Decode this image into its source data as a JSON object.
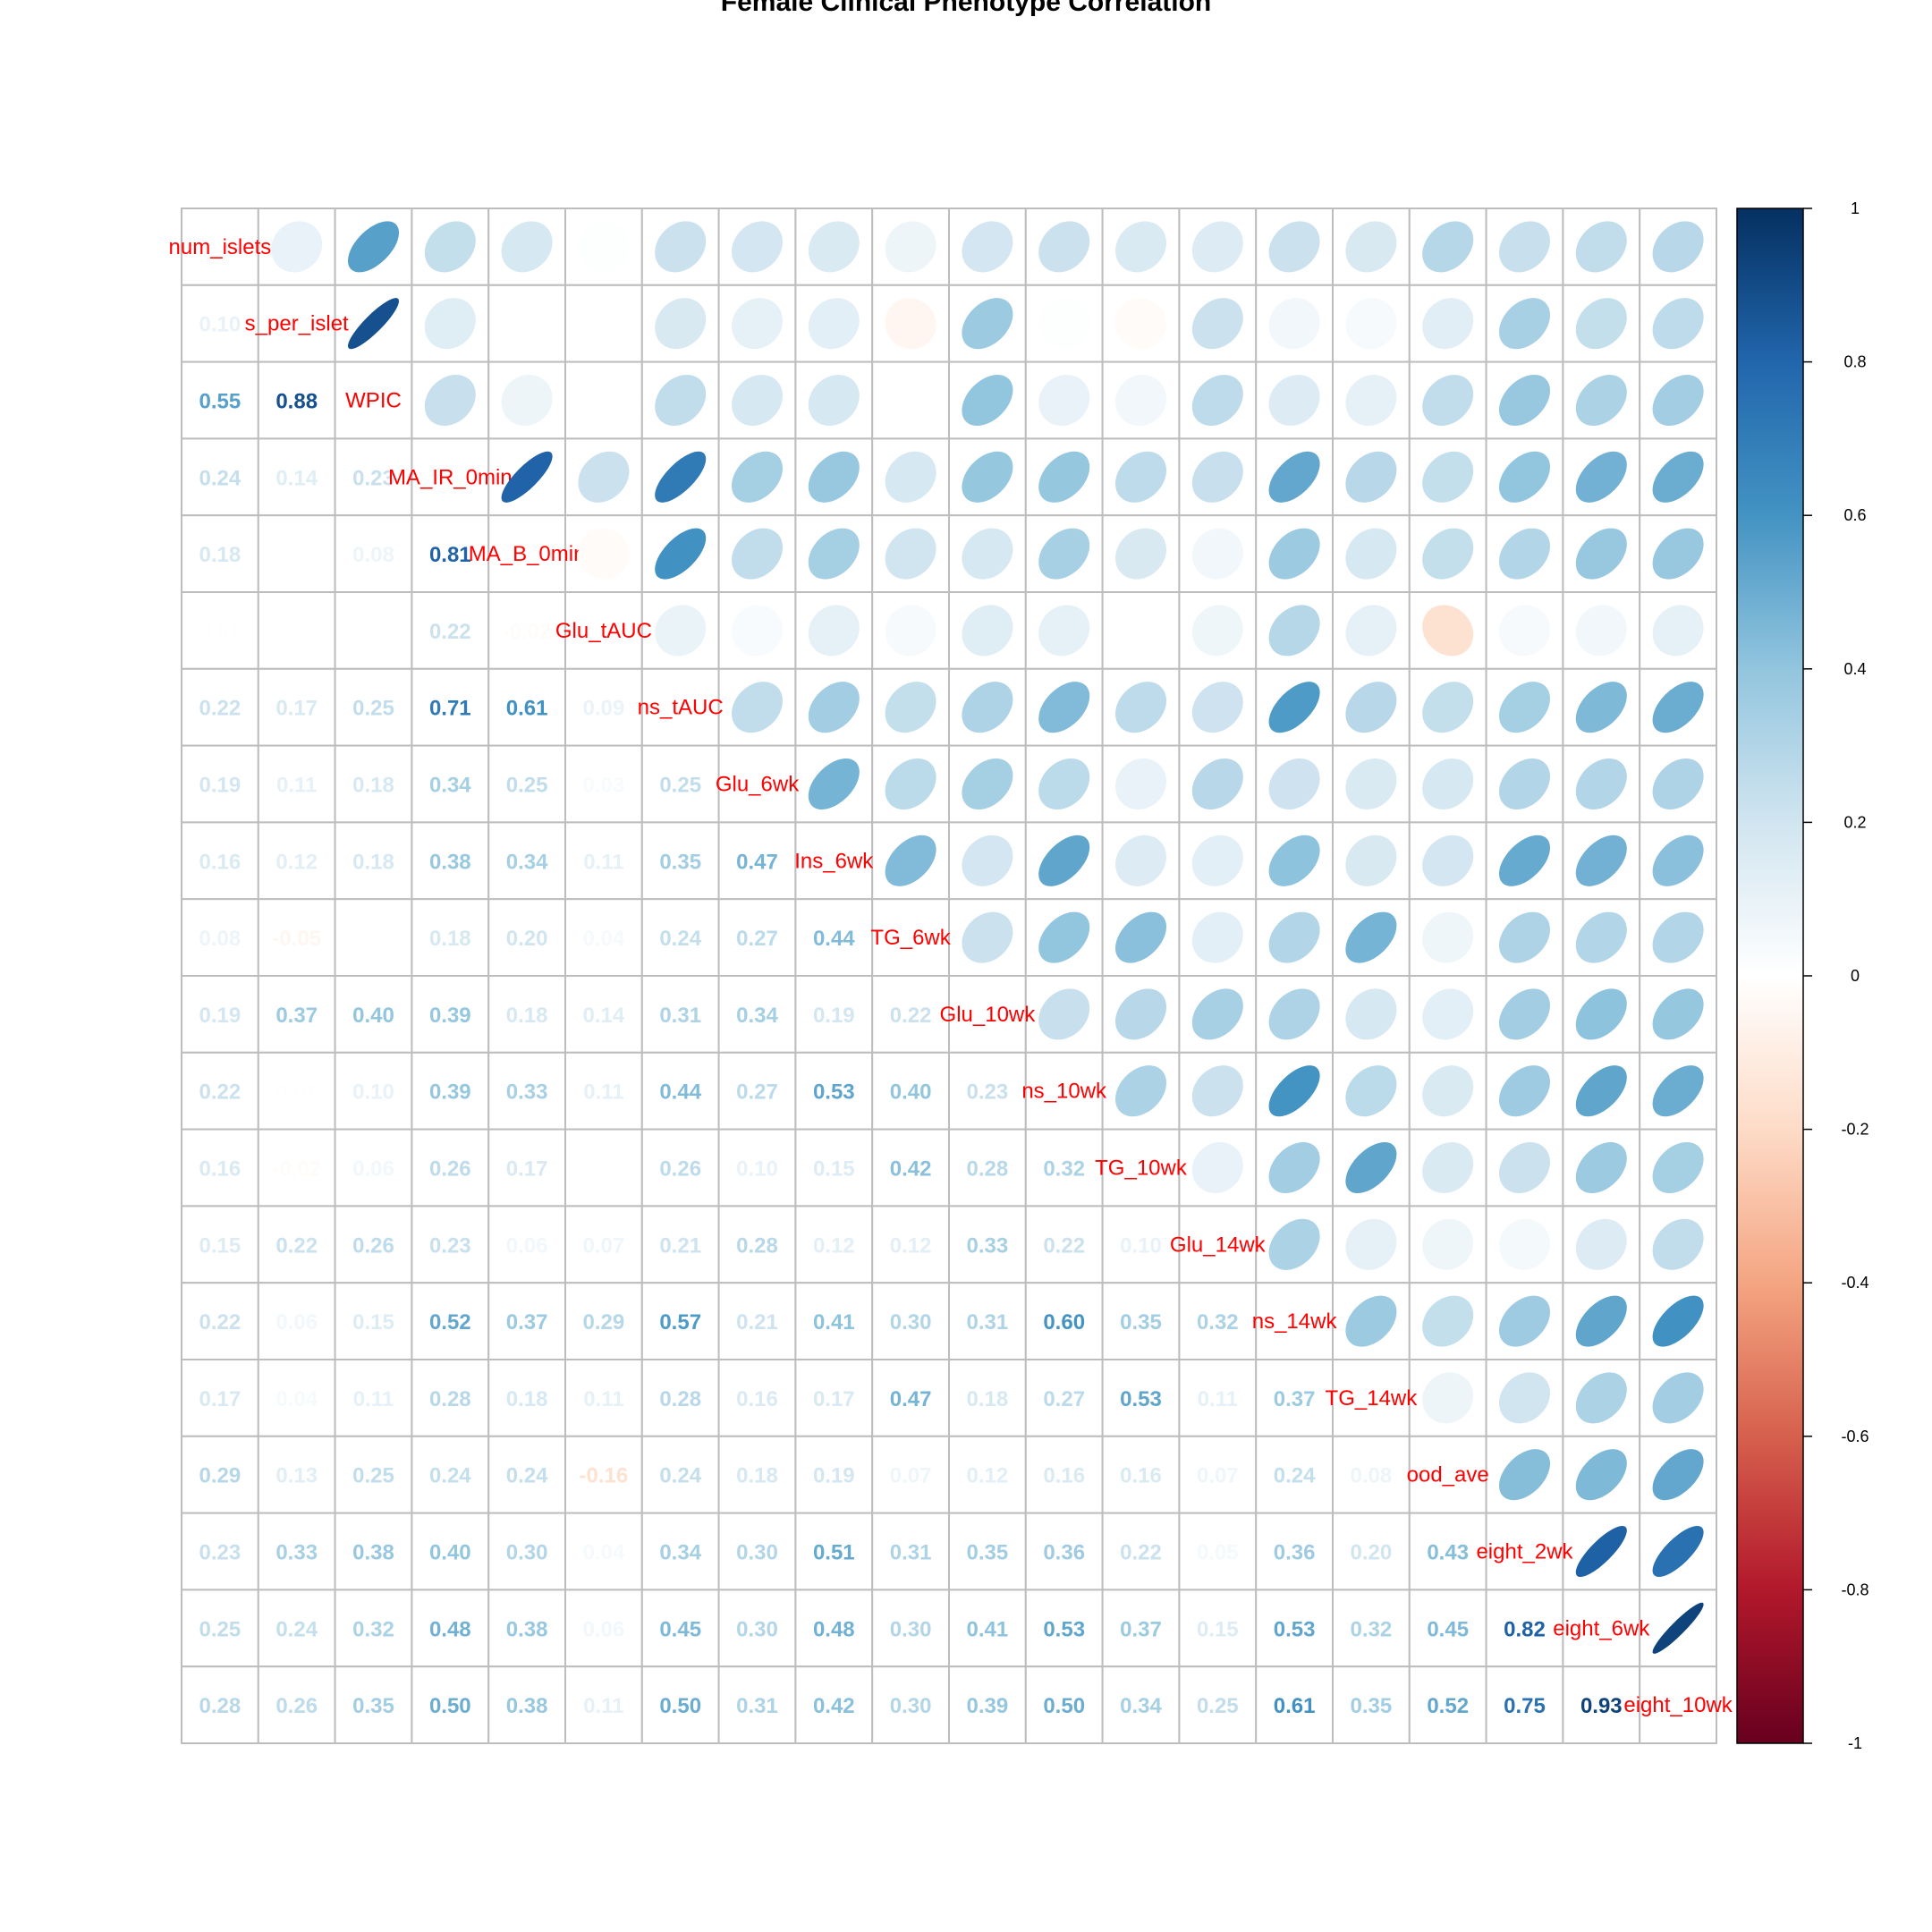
{
  "chart_data": {
    "type": "heatmap",
    "title": "Female Clinical Phenotype Correlation",
    "variables": [
      "num_islets",
      "s_per_islet",
      "WPIC",
      "MA_IR_0min",
      "MA_B_0min",
      "Glu_tAUC",
      "ns_tAUC",
      "Glu_6wk",
      "Ins_6wk",
      "TG_6wk",
      "Glu_10wk",
      "ns_10wk",
      "TG_10wk",
      "Glu_14wk",
      "ns_14wk",
      "TG_14wk",
      "ood_ave",
      "eight_2wk",
      "eight_6wk",
      "eight_10wk"
    ],
    "lower_method": "number",
    "upper_method": "ellipse",
    "label_color": "#ff0000",
    "matrix": [
      [
        1.0,
        0.1,
        0.55,
        0.24,
        0.18,
        0.01,
        0.22,
        0.19,
        0.16,
        0.08,
        0.19,
        0.22,
        0.16,
        0.15,
        0.22,
        0.17,
        0.29,
        0.23,
        0.25,
        0.28
      ],
      [
        0.1,
        1.0,
        0.88,
        0.14,
        0.0,
        0.0,
        0.17,
        0.11,
        0.12,
        -0.05,
        0.37,
        0.01,
        -0.02,
        0.22,
        0.06,
        0.04,
        0.13,
        0.33,
        0.24,
        0.26
      ],
      [
        0.55,
        0.88,
        1.0,
        0.23,
        0.08,
        0.0,
        0.25,
        0.18,
        0.18,
        0.0,
        0.4,
        0.1,
        0.06,
        0.26,
        0.15,
        0.11,
        0.25,
        0.38,
        0.32,
        0.35
      ],
      [
        0.24,
        0.14,
        0.23,
        1.0,
        0.81,
        0.22,
        0.71,
        0.34,
        0.38,
        0.18,
        0.39,
        0.39,
        0.26,
        0.23,
        0.52,
        0.28,
        0.24,
        0.4,
        0.48,
        0.5
      ],
      [
        0.18,
        0.0,
        0.08,
        0.81,
        1.0,
        -0.02,
        0.61,
        0.25,
        0.34,
        0.2,
        0.18,
        0.33,
        0.17,
        0.06,
        0.37,
        0.18,
        0.24,
        0.3,
        0.38,
        0.38
      ],
      [
        0.01,
        0.0,
        0.0,
        0.22,
        -0.02,
        1.0,
        0.09,
        0.03,
        0.11,
        0.04,
        0.14,
        0.11,
        0.0,
        0.07,
        0.29,
        0.11,
        -0.16,
        0.04,
        0.06,
        0.11
      ],
      [
        0.22,
        0.17,
        0.25,
        0.71,
        0.61,
        0.09,
        1.0,
        0.25,
        0.35,
        0.24,
        0.31,
        0.44,
        0.26,
        0.21,
        0.57,
        0.28,
        0.24,
        0.34,
        0.45,
        0.5
      ],
      [
        0.19,
        0.11,
        0.18,
        0.34,
        0.25,
        0.03,
        0.25,
        1.0,
        0.47,
        0.27,
        0.34,
        0.27,
        0.1,
        0.28,
        0.21,
        0.16,
        0.18,
        0.3,
        0.3,
        0.31
      ],
      [
        0.16,
        0.12,
        0.18,
        0.38,
        0.34,
        0.11,
        0.35,
        0.47,
        1.0,
        0.44,
        0.19,
        0.53,
        0.15,
        0.12,
        0.41,
        0.17,
        0.19,
        0.51,
        0.48,
        0.42
      ],
      [
        0.08,
        -0.05,
        0.0,
        0.18,
        0.2,
        0.04,
        0.24,
        0.27,
        0.44,
        1.0,
        0.22,
        0.4,
        0.42,
        0.12,
        0.3,
        0.47,
        0.07,
        0.31,
        0.3,
        0.3
      ],
      [
        0.19,
        0.37,
        0.4,
        0.39,
        0.18,
        0.14,
        0.31,
        0.34,
        0.19,
        0.22,
        1.0,
        0.23,
        0.28,
        0.33,
        0.31,
        0.18,
        0.12,
        0.35,
        0.41,
        0.39
      ],
      [
        0.22,
        0.01,
        0.1,
        0.39,
        0.33,
        0.11,
        0.44,
        0.27,
        0.53,
        0.4,
        0.23,
        1.0,
        0.32,
        0.22,
        0.6,
        0.27,
        0.16,
        0.36,
        0.53,
        0.5
      ],
      [
        0.16,
        -0.02,
        0.06,
        0.26,
        0.17,
        0.0,
        0.26,
        0.1,
        0.15,
        0.42,
        0.28,
        0.32,
        1.0,
        0.1,
        0.35,
        0.53,
        0.16,
        0.22,
        0.37,
        0.34
      ],
      [
        0.15,
        0.22,
        0.26,
        0.23,
        0.06,
        0.07,
        0.21,
        0.28,
        0.12,
        0.12,
        0.33,
        0.22,
        0.1,
        1.0,
        0.32,
        0.11,
        0.07,
        0.05,
        0.15,
        0.25
      ],
      [
        0.22,
        0.06,
        0.15,
        0.52,
        0.37,
        0.29,
        0.57,
        0.21,
        0.41,
        0.3,
        0.31,
        0.6,
        0.35,
        0.32,
        1.0,
        0.37,
        0.24,
        0.36,
        0.53,
        0.61
      ],
      [
        0.17,
        0.04,
        0.11,
        0.28,
        0.18,
        0.11,
        0.28,
        0.16,
        0.17,
        0.47,
        0.18,
        0.27,
        0.53,
        0.11,
        0.37,
        1.0,
        0.08,
        0.2,
        0.32,
        0.35
      ],
      [
        0.29,
        0.13,
        0.25,
        0.24,
        0.24,
        -0.16,
        0.24,
        0.18,
        0.19,
        0.07,
        0.12,
        0.16,
        0.16,
        0.07,
        0.24,
        0.08,
        1.0,
        0.43,
        0.45,
        0.52
      ],
      [
        0.23,
        0.33,
        0.38,
        0.4,
        0.3,
        0.04,
        0.34,
        0.3,
        0.51,
        0.31,
        0.35,
        0.36,
        0.22,
        0.05,
        0.36,
        0.2,
        0.43,
        1.0,
        0.82,
        0.75
      ],
      [
        0.25,
        0.24,
        0.32,
        0.48,
        0.38,
        0.06,
        0.45,
        0.3,
        0.48,
        0.3,
        0.41,
        0.53,
        0.37,
        0.15,
        0.53,
        0.32,
        0.45,
        0.82,
        1.0,
        0.93
      ],
      [
        0.28,
        0.26,
        0.35,
        0.5,
        0.38,
        0.11,
        0.5,
        0.31,
        0.42,
        0.3,
        0.39,
        0.5,
        0.34,
        0.25,
        0.61,
        0.35,
        0.52,
        0.75,
        0.93,
        1.0
      ]
    ],
    "colorbar": {
      "ticks": [
        "1",
        "0.8",
        "0.6",
        "0.4",
        "0.2",
        "0",
        "-0.2",
        "-0.4",
        "-0.6",
        "-0.8",
        "-1"
      ],
      "range": [
        -1,
        1
      ],
      "palette": [
        "#67001F",
        "#B2182B",
        "#D6604D",
        "#F4A582",
        "#FDDBC7",
        "#FFFFFF",
        "#D1E5F0",
        "#92C5DE",
        "#4393C3",
        "#2166AC",
        "#053061"
      ]
    },
    "grid": true
  }
}
